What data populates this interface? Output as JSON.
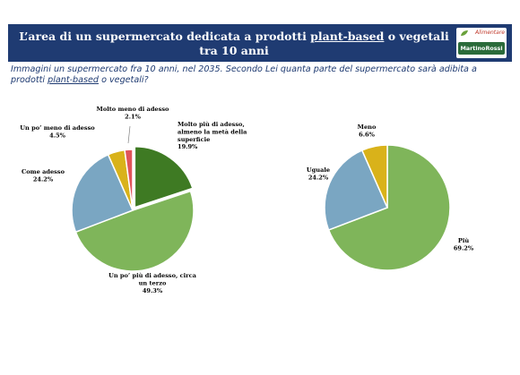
{
  "header": {
    "title_line1_pre": "L’area di un supermercato dedicata a prodotti ",
    "title_line1_underlined": "plant-based",
    "title_line1_post": " o vegetali",
    "title_line2": "tra 10 anni"
  },
  "logo": {
    "top_text": "Alimentare",
    "bottom_text": "MartinoRossi"
  },
  "question": {
    "pre": "Immagini un supermercato fra 10 anni, nel 2035. Secondo Lei quanta parte del supermercato sarà adibita a prodotti ",
    "underlined": "plant-based",
    "post": " o vegetali?"
  },
  "colors": {
    "header_bg": "#1f3b72",
    "dark_green": "#3e7a23",
    "light_green": "#7fb55a",
    "blue_gray": "#7aa6c2",
    "yellow": "#d9b21a",
    "red": "#e0545a",
    "separator": "#ffffff"
  },
  "chart_data": [
    {
      "type": "pie",
      "slices": [
        {
          "label_lines": [
            "Molto più di adesso,",
            "almeno la metà della",
            "superficie"
          ],
          "value_text": "19.9%",
          "value": 19.9,
          "color": "#3e7a23"
        },
        {
          "label_lines": [
            "Un po’ più di adesso, circa",
            "un terzo"
          ],
          "value_text": "49.3%",
          "value": 49.3,
          "color": "#7fb55a"
        },
        {
          "label_lines": [
            "Come adesso"
          ],
          "value_text": "24.2%",
          "value": 24.2,
          "color": "#7aa6c2"
        },
        {
          "label_lines": [
            "Un po’ meno di adesso"
          ],
          "value_text": "4.5%",
          "value": 4.5,
          "color": "#d9b21a"
        },
        {
          "label_lines": [
            "Molto meno di adesso"
          ],
          "value_text": "2.1%",
          "value": 2.1,
          "color": "#e0545a"
        }
      ]
    },
    {
      "type": "pie",
      "slices": [
        {
          "label_lines": [
            "Più"
          ],
          "value_text": "69.2%",
          "value": 69.2,
          "color": "#7fb55a"
        },
        {
          "label_lines": [
            "Uguale"
          ],
          "value_text": "24.2%",
          "value": 24.2,
          "color": "#7aa6c2"
        },
        {
          "label_lines": [
            "Meno"
          ],
          "value_text": "6.6%",
          "value": 6.6,
          "color": "#d9b21a"
        }
      ]
    }
  ]
}
